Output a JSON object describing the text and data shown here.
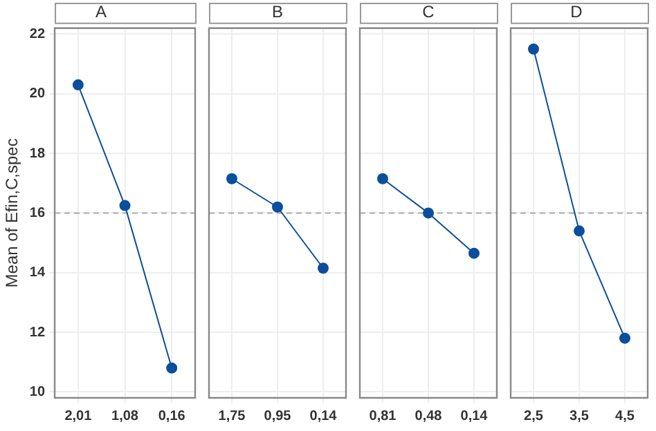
{
  "chart_data": [
    {
      "type": "line",
      "title": "A",
      "ylabel": "Mean of Efin,C,spec",
      "categories": [
        "2,01",
        "1,08",
        "0,16"
      ],
      "series": [
        {
          "color": "#0b4f9c",
          "values": [
            20.3,
            16.25,
            10.8
          ]
        }
      ],
      "ylim": [
        9.8,
        22.2
      ],
      "yticks": [
        10,
        12,
        14,
        16,
        18,
        20,
        22
      ],
      "grid": true,
      "marker": "circle",
      "legend": false,
      "ref_lines": [
        {
          "axis": "y",
          "value": 16.0,
          "color": "#aaaaaa",
          "line_style": "dashed"
        }
      ]
    },
    {
      "type": "line",
      "title": "B",
      "categories": [
        "1,75",
        "0,95",
        "0,14"
      ],
      "series": [
        {
          "color": "#0b4f9c",
          "values": [
            17.15,
            16.2,
            14.15
          ]
        }
      ],
      "ylim": [
        9.8,
        22.2
      ],
      "yticks": [
        10,
        12,
        14,
        16,
        18,
        20,
        22
      ],
      "tick_labels": "x",
      "grid": true,
      "marker": "circle",
      "legend": false,
      "ref_lines": [
        {
          "axis": "y",
          "value": 16.0,
          "color": "#aaaaaa",
          "line_style": "dashed"
        }
      ]
    },
    {
      "type": "line",
      "title": "C",
      "categories": [
        "0,81",
        "0,48",
        "0,14"
      ],
      "series": [
        {
          "color": "#0b4f9c",
          "values": [
            17.15,
            16.0,
            14.65
          ]
        }
      ],
      "ylim": [
        9.8,
        22.2
      ],
      "yticks": [
        10,
        12,
        14,
        16,
        18,
        20,
        22
      ],
      "tick_labels": "x",
      "grid": true,
      "marker": "circle",
      "legend": false,
      "ref_lines": [
        {
          "axis": "y",
          "value": 16.0,
          "color": "#aaaaaa",
          "line_style": "dashed"
        }
      ]
    },
    {
      "type": "line",
      "title": "D",
      "categories": [
        "2,5",
        "3,5",
        "4,5"
      ],
      "series": [
        {
          "color": "#0b4f9c",
          "values": [
            21.5,
            15.4,
            11.8
          ]
        }
      ],
      "ylim": [
        9.8,
        22.2
      ],
      "yticks": [
        10,
        12,
        14,
        16,
        18,
        20,
        22
      ],
      "tick_labels": "x",
      "grid": true,
      "marker": "circle",
      "legend": false,
      "ref_lines": [
        {
          "axis": "y",
          "value": 16.0,
          "color": "#aaaaaa",
          "line_style": "dashed"
        }
      ]
    }
  ]
}
